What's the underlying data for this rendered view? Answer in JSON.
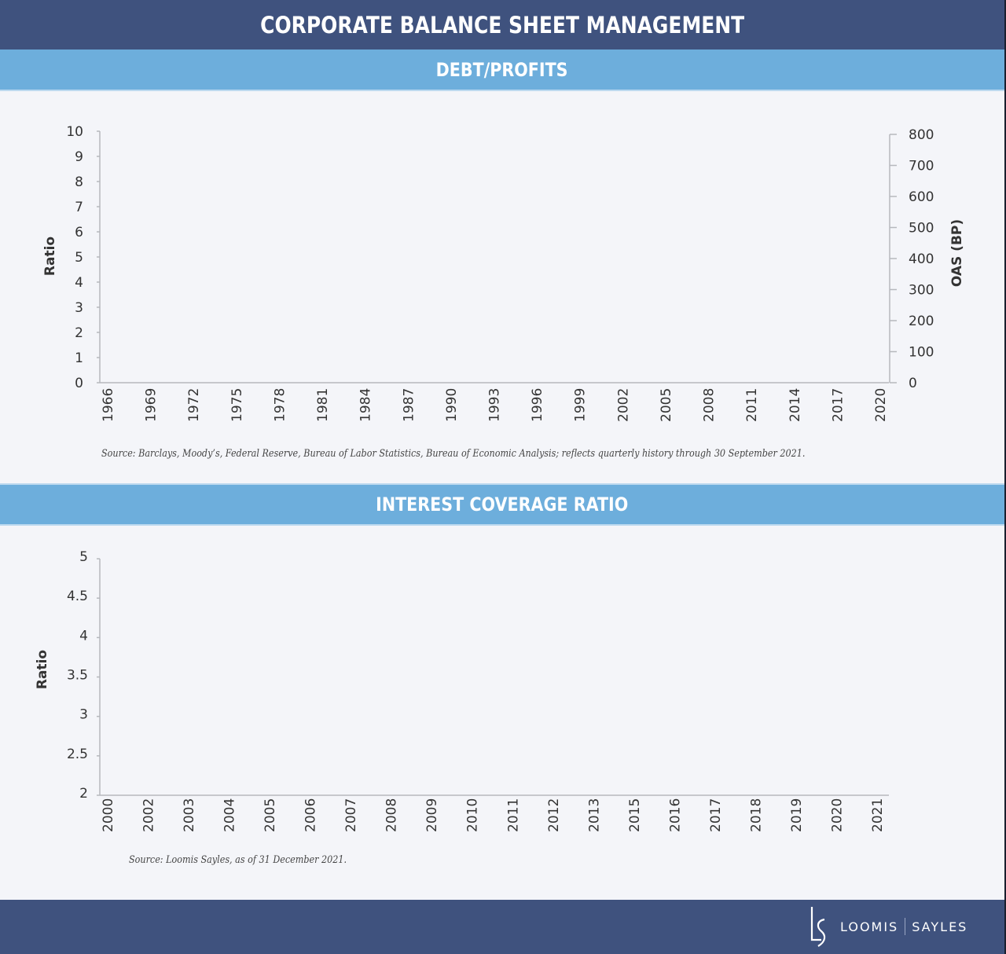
{
  "header": {
    "title": "CORPORATE BALANCE SHEET MANAGEMENT"
  },
  "sections": [
    {
      "title": "DEBT/PROFITS",
      "source": "Source: Barclays, Moody’s, Federal Reserve, Bureau of Labor Statistics, Bureau of Economic Analysis; reflects quarterly history through 30 September 2021."
    },
    {
      "title": "INTEREST COVERAGE RATIO",
      "source": "Source: Loomis Sayles, as of 31 December 2021."
    }
  ],
  "footer": {
    "brand_left": "LOOMIS",
    "brand_right": "SAYLES",
    "logo": "ls-monogram-icon"
  },
  "colors": {
    "banner": "#3f527e",
    "section_bar": "#6daedc",
    "background": "#f4f5f9",
    "axis": "#b6b8bd"
  },
  "chart_data": [
    {
      "type": "line",
      "title": "DEBT/PROFITS",
      "xlabel": "",
      "ylabel": "Ratio",
      "y2label": "OAS (BP)",
      "ylim": [
        0,
        10
      ],
      "y2lim": [
        0,
        800
      ],
      "yticks": [
        "0",
        "1",
        "2",
        "3",
        "4",
        "5",
        "6",
        "7",
        "8",
        "9",
        "10"
      ],
      "y2ticks": [
        "0",
        "100",
        "200",
        "300",
        "400",
        "500",
        "600",
        "700",
        "800"
      ],
      "categories": [
        "1966",
        "1969",
        "1972",
        "1975",
        "1978",
        "1981",
        "1984",
        "1987",
        "1990",
        "1993",
        "1996",
        "1999",
        "2002",
        "2005",
        "2008",
        "2011",
        "2014",
        "2017",
        "2020"
      ],
      "series": [],
      "grid": false,
      "note": "Axes rendered with no plotted series visible."
    },
    {
      "type": "line",
      "title": "INTEREST COVERAGE RATIO",
      "xlabel": "",
      "ylabel": "Ratio",
      "ylim": [
        2,
        5
      ],
      "yticks": [
        "2",
        "2.5",
        "3",
        "3.5",
        "4",
        "4.5",
        "5"
      ],
      "categories": [
        "2000",
        "2002",
        "2003",
        "2004",
        "2005",
        "2006",
        "2007",
        "2008",
        "2009",
        "2010",
        "2011",
        "2012",
        "2013",
        "2015",
        "2016",
        "2017",
        "2018",
        "2019",
        "2020",
        "2021"
      ],
      "series": [],
      "grid": false,
      "note": "Axes rendered with no plotted series visible."
    }
  ]
}
